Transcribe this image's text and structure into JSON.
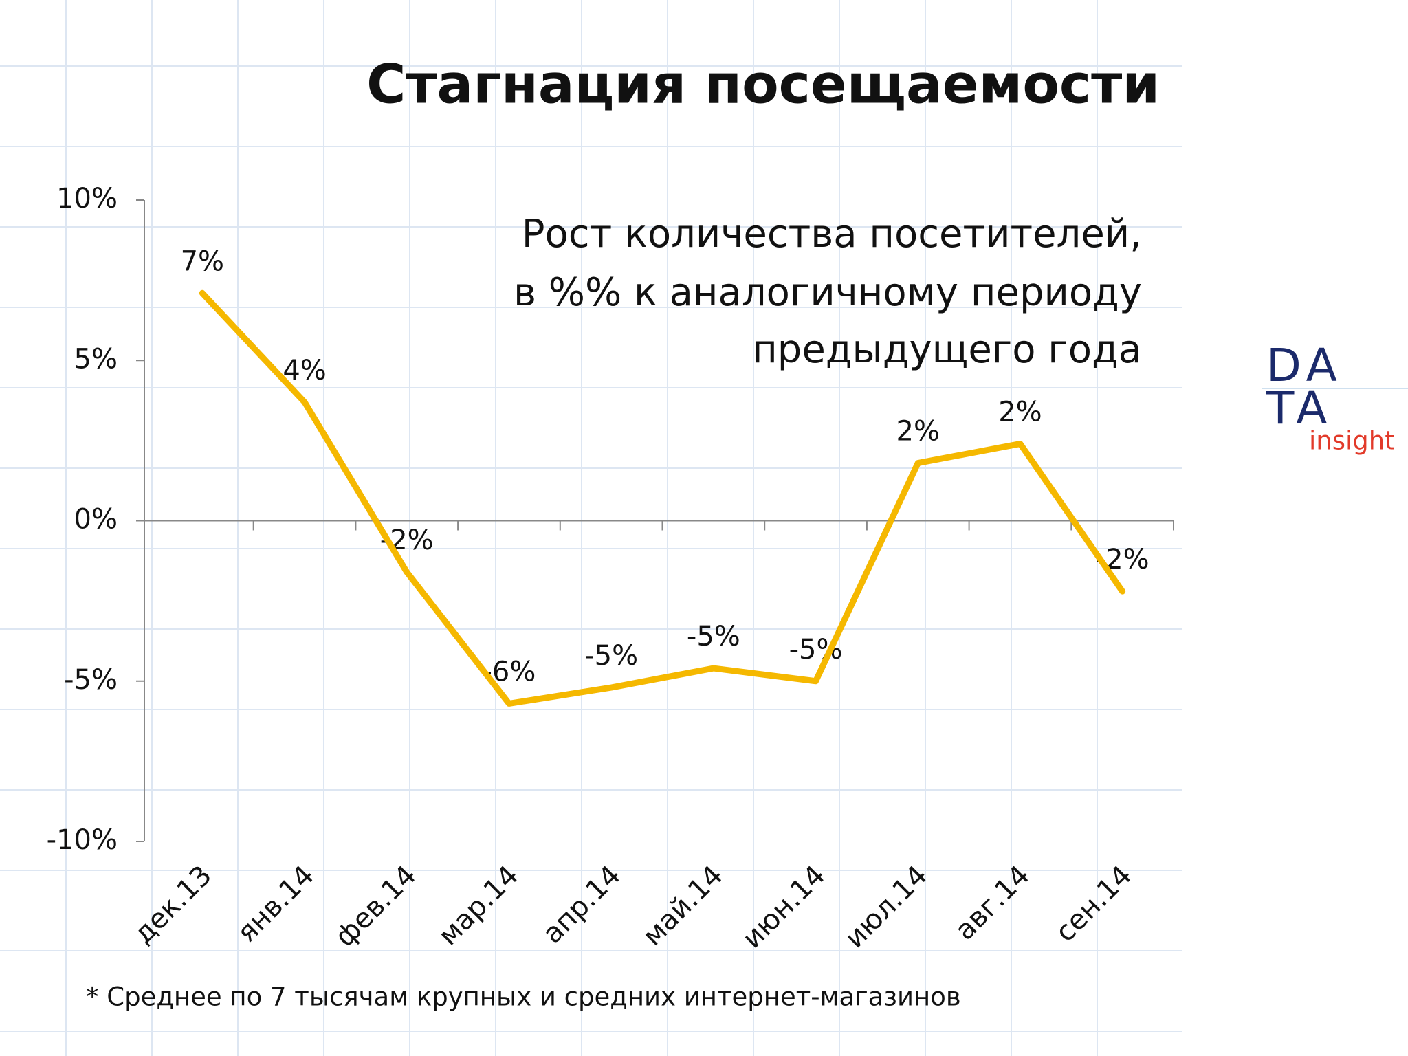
{
  "chart_data": {
    "type": "line",
    "title": "Стагнация посещаемости",
    "subtitle": [
      "Рост количества посетителей,",
      "в %% к аналогичному периоду",
      "предыдущего года"
    ],
    "categories": [
      "дек.13",
      "янв.14",
      "фев.14",
      "мар.14",
      "апр.14",
      "май.14",
      "июн.14",
      "июл.14",
      "авг.14",
      "сен.14"
    ],
    "series": [
      {
        "color": "#f5b800",
        "values": [
          7.1,
          3.7,
          -1.6,
          -5.7,
          -5.2,
          -4.6,
          -5.0,
          1.8,
          2.4,
          -2.2
        ],
        "value_labels": [
          "7%",
          "4%",
          "-2%",
          "-6%",
          "-5%",
          "-5%",
          "-5%",
          "2%",
          "2%",
          "-2%"
        ]
      }
    ],
    "ylim": [
      -10,
      10
    ],
    "yticks": [
      {
        "value": -10,
        "label": "-10%"
      },
      {
        "value": -5,
        "label": "-5%"
      },
      {
        "value": 0,
        "label": "0%"
      },
      {
        "value": 5,
        "label": "5%"
      },
      {
        "value": 10,
        "label": "10%"
      }
    ],
    "footnote": "* Среднее по 7 тысячам крупных и средних интернет-магазинов"
  },
  "logo": {
    "line1": "DA",
    "line2": "TA",
    "tagline": "insight"
  }
}
